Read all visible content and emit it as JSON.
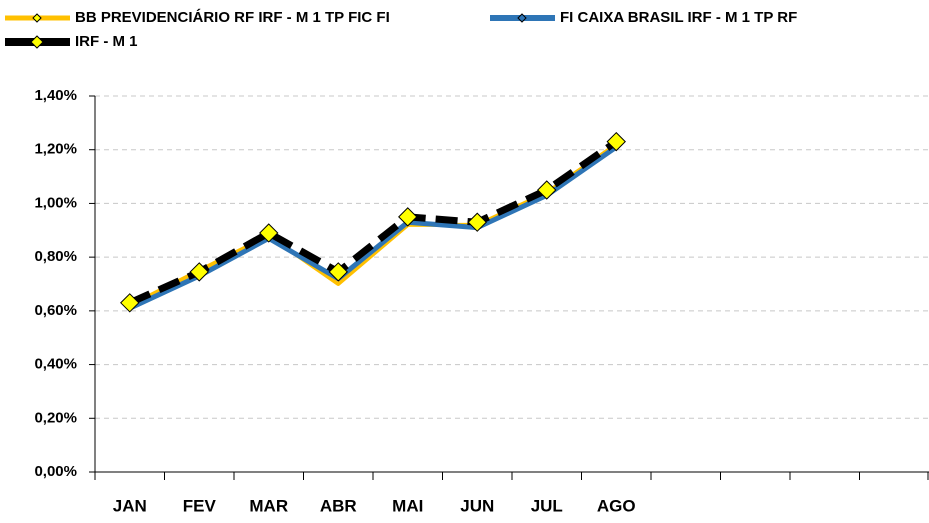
{
  "chart_data": {
    "type": "line",
    "categories": [
      "JAN",
      "FEV",
      "MAR",
      "ABR",
      "MAI",
      "JUN",
      "JUL",
      "AGO",
      null,
      null,
      null,
      null
    ],
    "series": [
      {
        "name": "BB PREVIDENCIÁRIO RF IRF - M 1 TP FIC FI",
        "color": "#ffc000",
        "values": [
          0.62,
          0.75,
          0.88,
          0.7,
          0.92,
          0.92,
          1.04,
          1.22,
          null,
          null,
          null,
          null
        ]
      },
      {
        "name": "FI CAIXA BRASIL IRF - M 1 TP RF",
        "color": "#2e75b6",
        "values": [
          0.61,
          0.73,
          0.87,
          0.72,
          0.93,
          0.91,
          1.03,
          1.21,
          null,
          null,
          null,
          null
        ]
      },
      {
        "name": "IRF - M 1",
        "color": "#000000",
        "values": [
          0.63,
          0.745,
          0.89,
          0.745,
          0.95,
          0.93,
          1.05,
          1.23,
          null,
          null,
          null,
          null
        ]
      }
    ],
    "ylim": [
      0,
      1.4
    ],
    "yticks": [
      {
        "value": 0,
        "label": "0,00%"
      },
      {
        "value": 0.2,
        "label": "0,20%"
      },
      {
        "value": 0.4,
        "label": "0,40%"
      },
      {
        "value": 0.6,
        "label": "0,60%"
      },
      {
        "value": 0.8,
        "label": "0,80%"
      },
      {
        "value": 1.0,
        "label": "1,00%"
      },
      {
        "value": 1.2,
        "label": "1,20%"
      },
      {
        "value": 1.4,
        "label": "1,40%"
      }
    ],
    "grid": true
  }
}
